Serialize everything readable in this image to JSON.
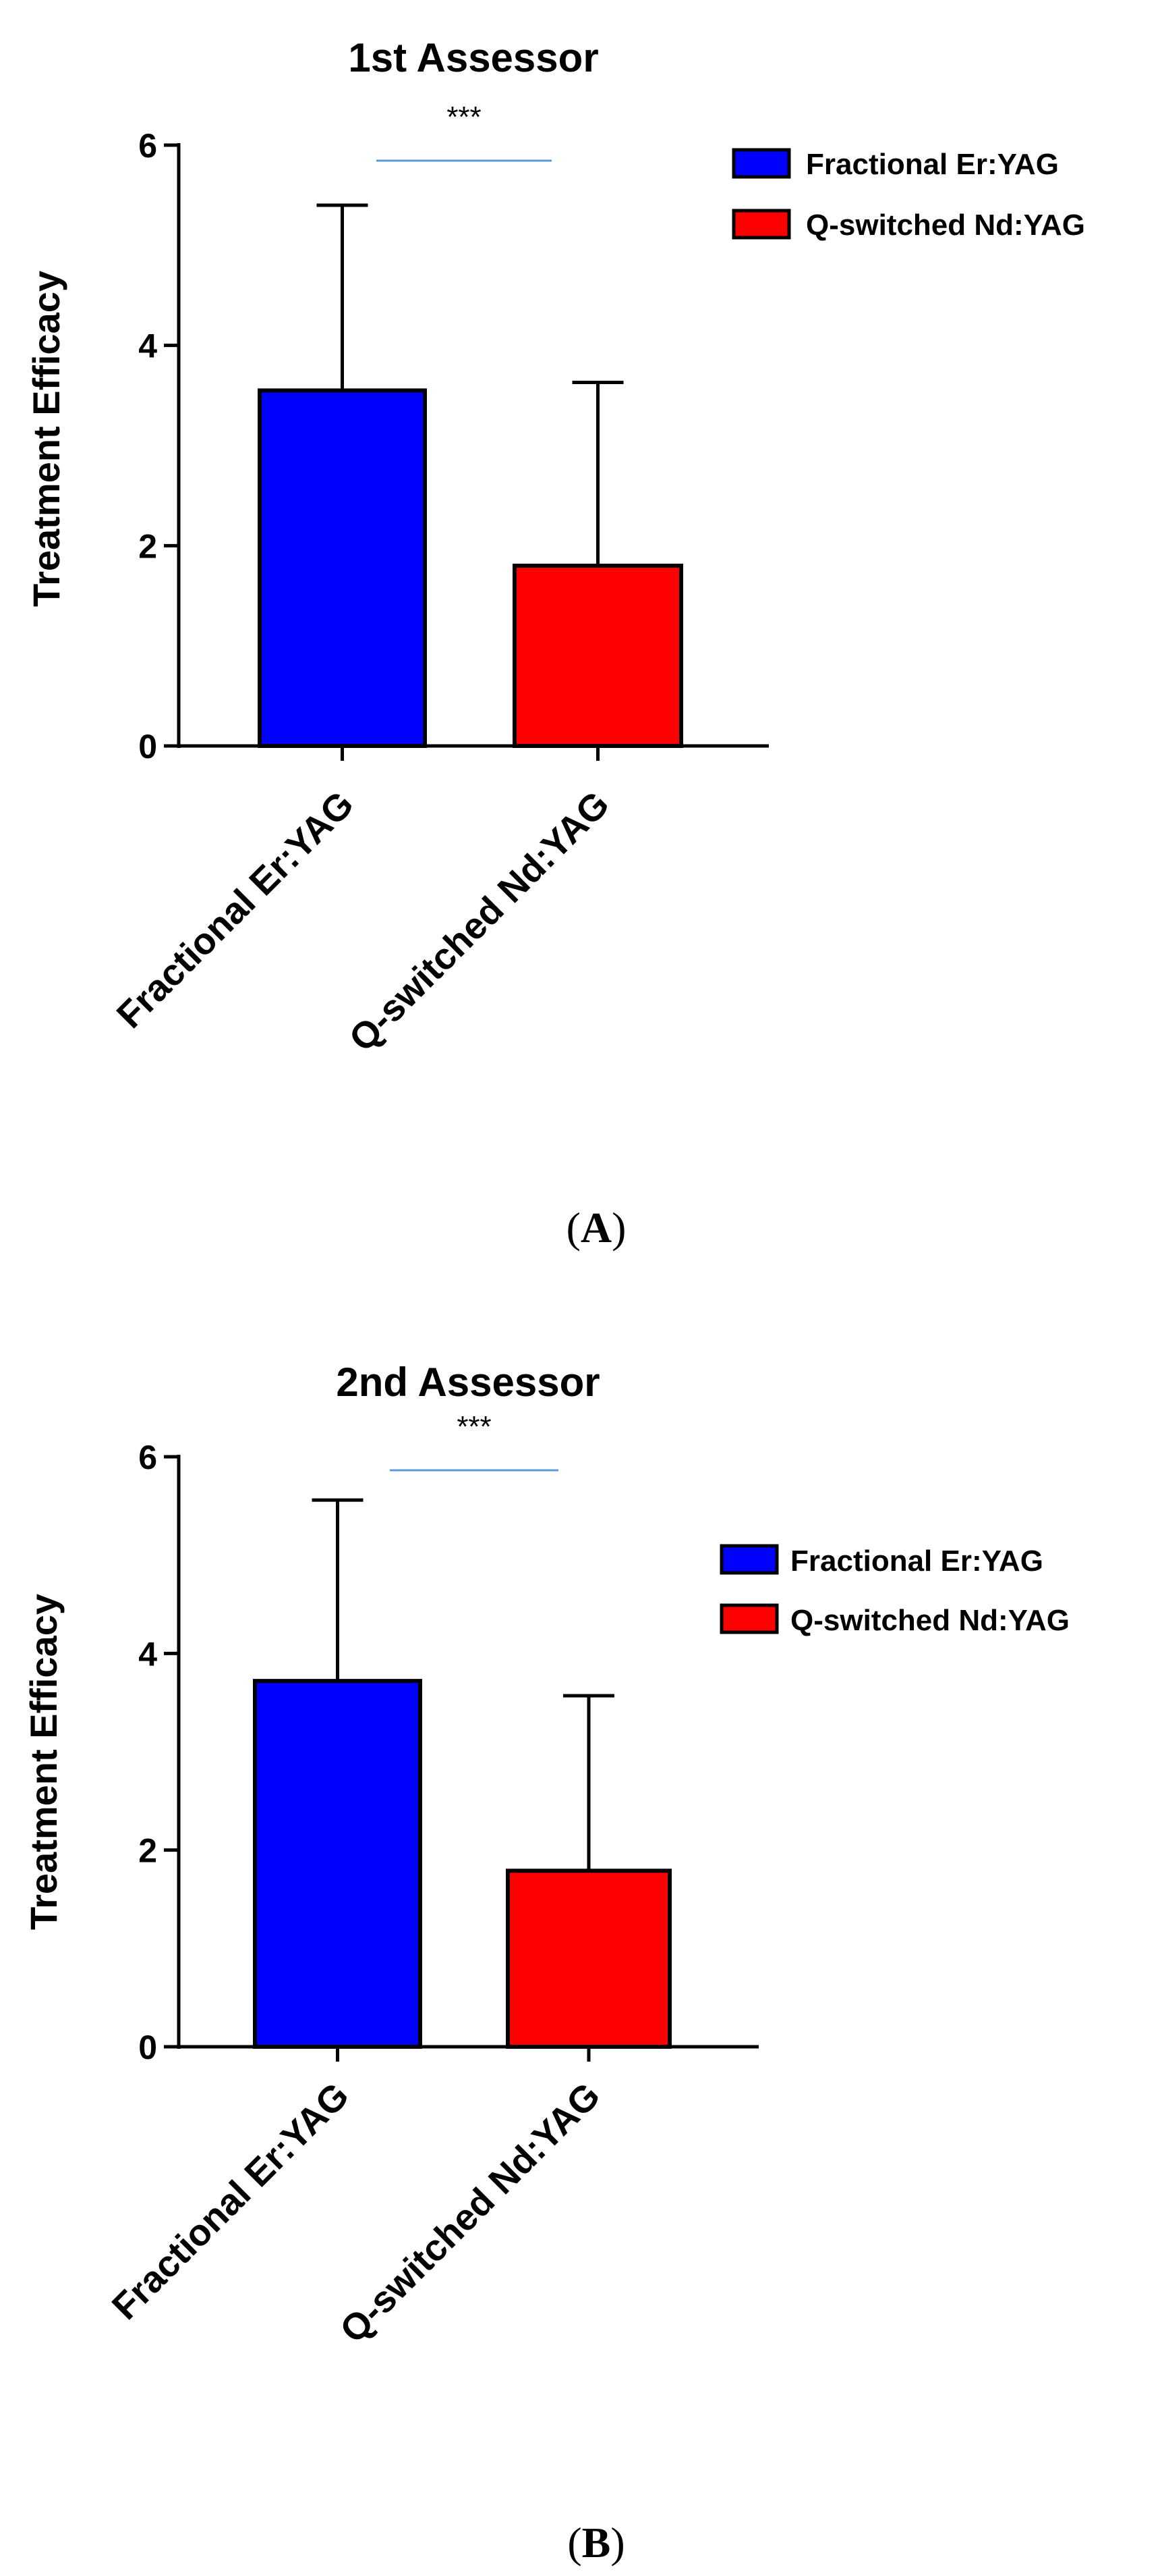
{
  "chart_data": [
    {
      "type": "bar",
      "title": "1st Assessor",
      "ylabel": "Treatment Efficacy",
      "xlabel": "",
      "ylim": [
        0,
        6
      ],
      "yticks": [
        "0",
        "2",
        "4",
        "6"
      ],
      "categories": [
        "Fractional Er:YAG",
        "Q-switched Nd:YAG"
      ],
      "values": [
        3.55,
        1.8
      ],
      "errors": [
        1.85,
        1.83
      ],
      "colors": [
        "#0000ff",
        "#ff0000"
      ],
      "legend": [
        "Fractional Er:YAG",
        "Q-switched Nd:YAG"
      ],
      "legend_position": "top-right",
      "significance": "***",
      "caption_open": "(",
      "caption_letter": "A",
      "caption_close": ")"
    },
    {
      "type": "bar",
      "title": "2nd Assessor",
      "ylabel": "Treatment Efficacy",
      "xlabel": "",
      "ylim": [
        0,
        6
      ],
      "yticks": [
        "0",
        "2",
        "4",
        "6"
      ],
      "categories": [
        "Fractional Er:YAG",
        "Q-switched Nd:YAG"
      ],
      "values": [
        3.72,
        1.79
      ],
      "errors": [
        1.84,
        1.78
      ],
      "colors": [
        "#0000ff",
        "#ff0000"
      ],
      "legend": [
        "Fractional Er:YAG",
        "Q-switched Nd:YAG"
      ],
      "legend_position": "right",
      "significance": "***",
      "caption_open": "(",
      "caption_letter": "B",
      "caption_close": ")"
    }
  ]
}
